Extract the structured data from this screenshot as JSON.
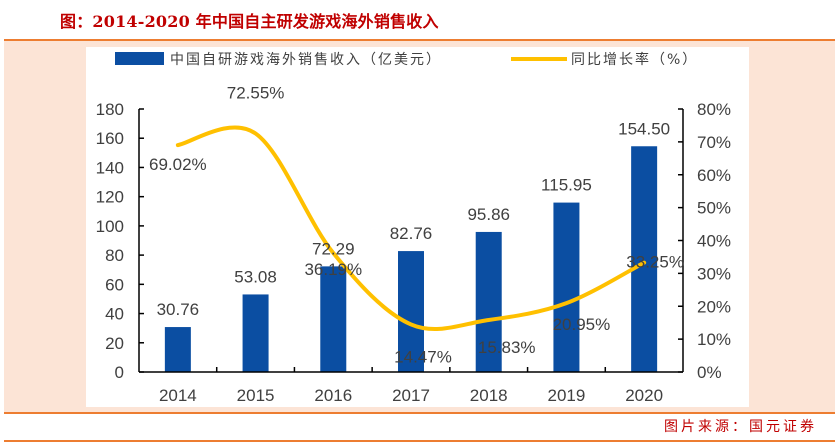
{
  "figure": {
    "title": "图：2014-2020 年中国自主研发游戏海外销售收入",
    "source": "图片来源：国元证券"
  },
  "chart_data": {
    "type": "bar",
    "title": "2014-2020 年中国自主研发游戏海外销售收入",
    "categories": [
      "2014",
      "2015",
      "2016",
      "2017",
      "2018",
      "2019",
      "2020"
    ],
    "series": [
      {
        "name": "中国自研游戏海外销售收入（亿美元）",
        "type": "bar",
        "axis": "left",
        "color": "#0b4ea2",
        "values": [
          30.76,
          53.08,
          72.29,
          82.76,
          95.86,
          115.95,
          154.5
        ],
        "labels": [
          "30.76",
          "53.08",
          "72.29",
          "82.76",
          "95.86",
          "115.95",
          "154.50"
        ]
      },
      {
        "name": "同比增长率（%）",
        "type": "line",
        "axis": "right",
        "color": "#ffc000",
        "smooth": true,
        "values": [
          69.02,
          72.55,
          36.19,
          14.47,
          15.83,
          20.95,
          33.25
        ],
        "labels": [
          "69.02%",
          "72.55%",
          "36.19%",
          "14.47%",
          "15.83%",
          "20.95%",
          "33.25%"
        ]
      }
    ],
    "y_left": {
      "range": [
        0,
        180
      ],
      "ticks": [
        "0",
        "20",
        "40",
        "60",
        "80",
        "100",
        "120",
        "140",
        "160",
        "180"
      ]
    },
    "y_right": {
      "range": [
        0,
        80
      ],
      "ticks": [
        "0%",
        "10%",
        "20%",
        "30%",
        "40%",
        "50%",
        "60%",
        "70%",
        "80%"
      ]
    },
    "xlabel": "",
    "ylabel": "",
    "grid": false,
    "legend": "top"
  }
}
